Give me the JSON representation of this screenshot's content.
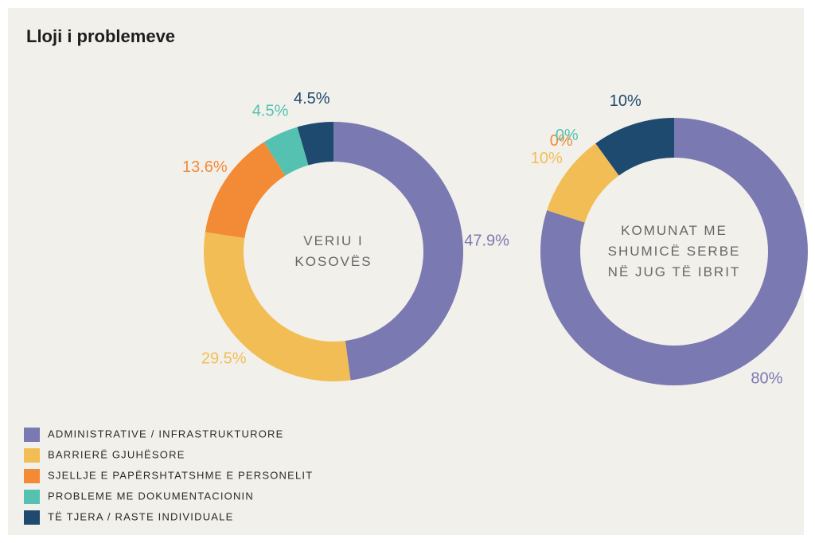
{
  "title": "Lloji i problemeve",
  "chart_data": [
    {
      "type": "donut",
      "center_label": "VERIU I KOSOVËS",
      "categories": [
        "ADMINISTRATIVE / INFRASTRUKTURORE",
        "BARRIERË GJUHËSORE",
        "SJELLJE E PAPËRSHTATSHME E PERSONELIT",
        "PROBLEME ME DOKUMENTACIONIN",
        "TË TJERA / RASTE INDIVIDUALE"
      ],
      "colors": [
        "#7b79b1",
        "#f2bd55",
        "#f38a36",
        "#55c2b1",
        "#1f4a6f"
      ],
      "values": [
        47.9,
        29.5,
        13.6,
        4.5,
        4.5
      ],
      "value_labels": [
        "47.9%",
        "29.5%",
        "13.6%",
        "4.5%",
        "4.5%"
      ]
    },
    {
      "type": "donut",
      "center_label": "KOMUNAT ME SHUMICË SERBE NË JUG TË IBRIT",
      "categories": [
        "ADMINISTRATIVE / INFRASTRUKTURORE",
        "BARRIERË GJUHËSORE",
        "SJELLJE E PAPËRSHTATSHME E PERSONELIT",
        "PROBLEME ME DOKUMENTACIONIN",
        "TË TJERA / RASTE INDIVIDUALE"
      ],
      "colors": [
        "#7b79b1",
        "#f2bd55",
        "#f38a36",
        "#55c2b1",
        "#1f4a6f"
      ],
      "values": [
        80,
        10,
        0,
        0,
        10
      ],
      "value_labels": [
        "80%",
        "10%",
        "0%",
        "0%",
        "10%"
      ]
    }
  ]
}
